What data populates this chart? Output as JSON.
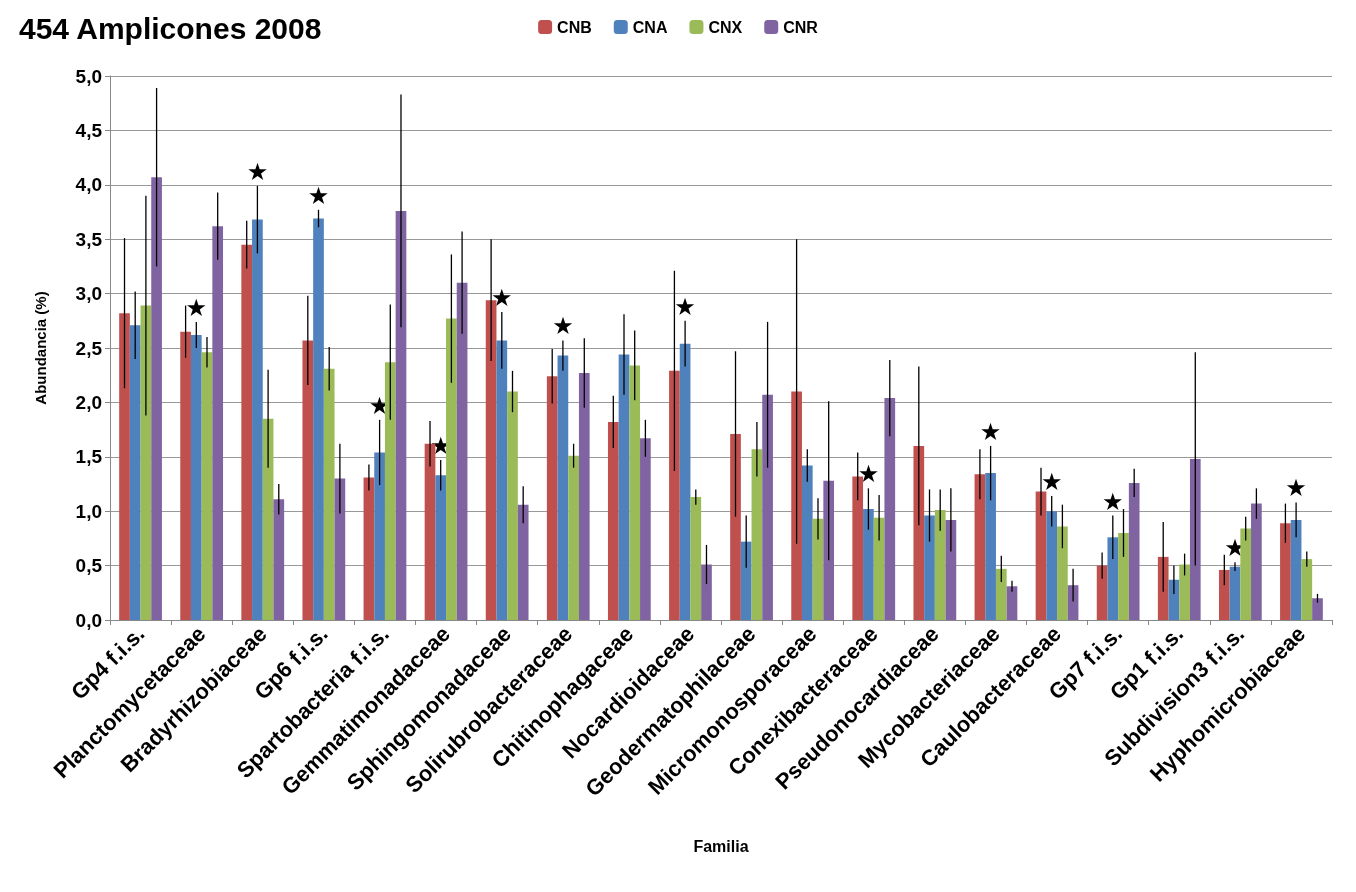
{
  "chart_data": {
    "type": "bar",
    "title": "454 Amplicones 2008",
    "xlabel": "Familia",
    "ylabel": "Abundancia (%)",
    "categories": [
      "Gp4 f.i.s.",
      "Planctomycetaceae",
      "Bradyrhizobiaceae",
      "Gp6 f.i.s.",
      "Spartobacteria f.i.s.",
      "Gemmatimonadaceae",
      "Sphingomonadaceae",
      "Solirubrobacteraceae",
      "Chitinophagaceae",
      "Nocardioidaceae",
      "Geodermatophilaceae",
      "Micromonosporaceae",
      "Conexibacteraceae",
      "Pseudonocardiaceae",
      "Mycobacteriaceae",
      "Caulobacteraceae",
      "Gp7 f.i.s.",
      "Gp1 f.i.s.",
      "Subdivision3 f.i.s.",
      "Hyphomicrobiaceae"
    ],
    "series": [
      {
        "name": "CNB",
        "color": "#c0504d",
        "values": [
          2.82,
          2.65,
          3.45,
          2.57,
          1.31,
          1.62,
          2.94,
          2.24,
          1.82,
          2.29,
          1.71,
          2.1,
          1.32,
          1.6,
          1.34,
          1.18,
          0.5,
          0.58,
          0.46,
          0.89
        ],
        "errors": [
          0.69,
          0.24,
          0.22,
          0.41,
          0.12,
          0.21,
          0.56,
          0.25,
          0.24,
          0.92,
          0.76,
          1.4,
          0.22,
          0.73,
          0.23,
          0.22,
          0.12,
          0.32,
          0.14,
          0.18
        ]
      },
      {
        "name": "CNA",
        "color": "#4f81bd",
        "values": [
          2.71,
          2.62,
          3.68,
          3.69,
          1.54,
          1.33,
          2.57,
          2.43,
          2.44,
          2.54,
          0.72,
          1.42,
          1.02,
          0.96,
          1.35,
          1.0,
          0.76,
          0.37,
          0.49,
          0.92
        ],
        "errors": [
          0.31,
          0.12,
          0.31,
          0.08,
          0.3,
          0.14,
          0.26,
          0.14,
          0.37,
          0.21,
          0.24,
          0.15,
          0.19,
          0.24,
          0.25,
          0.14,
          0.2,
          0.13,
          0.04,
          0.16
        ],
        "value_labels": [
          null,
          "★",
          "★",
          "★",
          "★",
          "★",
          "★",
          "★",
          null,
          "★",
          null,
          null,
          "★",
          null,
          "★",
          "★",
          "★",
          null,
          "★",
          "★"
        ]
      },
      {
        "name": "CNX",
        "color": "#9bbb59",
        "values": [
          2.89,
          2.46,
          1.85,
          2.31,
          2.37,
          2.77,
          2.1,
          1.51,
          2.34,
          1.13,
          1.57,
          0.93,
          0.94,
          1.01,
          0.47,
          0.86,
          0.8,
          0.51,
          0.84,
          0.56
        ],
        "errors": [
          1.01,
          0.14,
          0.45,
          0.2,
          0.53,
          0.59,
          0.19,
          0.11,
          0.32,
          0.07,
          0.25,
          0.19,
          0.21,
          0.19,
          0.12,
          0.2,
          0.22,
          0.1,
          0.11,
          0.07
        ]
      },
      {
        "name": "CNR",
        "color": "#8064a2",
        "values": [
          4.07,
          3.62,
          1.11,
          1.3,
          3.76,
          3.1,
          1.06,
          2.27,
          1.67,
          0.51,
          2.07,
          1.28,
          2.04,
          0.92,
          0.31,
          0.32,
          1.26,
          1.48,
          1.07,
          0.2
        ],
        "errors": [
          0.82,
          0.31,
          0.14,
          0.32,
          1.07,
          0.47,
          0.17,
          0.32,
          0.17,
          0.18,
          0.67,
          0.73,
          0.35,
          0.29,
          0.05,
          0.15,
          0.13,
          0.98,
          0.14,
          0.04
        ]
      }
    ],
    "ylim": [
      0,
      5
    ],
    "yticks": [
      {
        "value": 0,
        "label": "0,0"
      },
      {
        "value": 0.5,
        "label": "0,5"
      },
      {
        "value": 1,
        "label": "1,0"
      },
      {
        "value": 1.5,
        "label": "1,5"
      },
      {
        "value": 2,
        "label": "2,0"
      },
      {
        "value": 2.5,
        "label": "2,5"
      },
      {
        "value": 3,
        "label": "3,0"
      },
      {
        "value": 3.5,
        "label": "3,5"
      },
      {
        "value": 4,
        "label": "4,0"
      },
      {
        "value": 4.5,
        "label": "4,5"
      },
      {
        "value": 5,
        "label": "5,0"
      }
    ],
    "grid": "y",
    "legend": "top"
  }
}
